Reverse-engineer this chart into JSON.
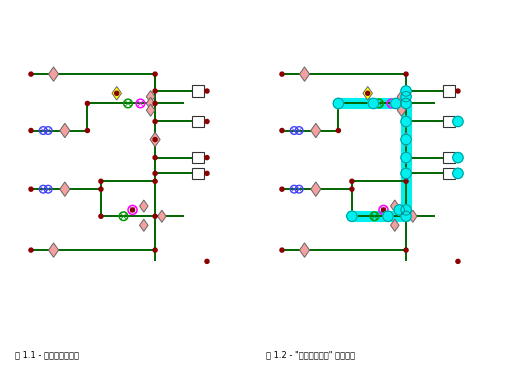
{
  "fig_width": 5.07,
  "fig_height": 3.7,
  "dpi": 100,
  "bg_color": "#ffffff",
  "border_color": "#000000",
  "green": "#006400",
  "cyan": "#00EFEF",
  "dark_red": "#8B0000",
  "pink": "#F4A0A0",
  "yellow": "#FFFF00",
  "magenta": "#FF00FF",
  "blue": "#4444FF",
  "dgreen": "#006400",
  "label1": "图 1.1 - 初始逻辑示意图",
  "label2": "图 1.2 - \"网络环路分析\" 逻辑结果"
}
